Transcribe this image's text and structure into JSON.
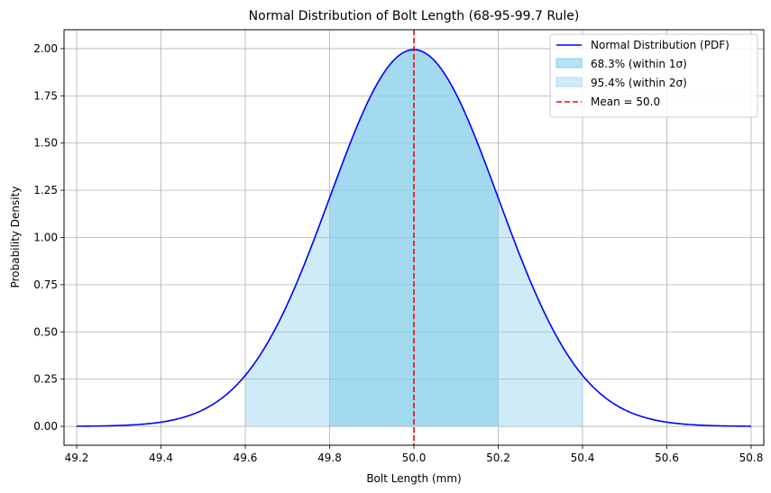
{
  "chart_data": {
    "type": "line",
    "title": "Normal Distribution of Bolt Length (68-95-99.7 Rule)",
    "xlabel": "Bolt Length (mm)",
    "ylabel": "Probability Density",
    "xlim": [
      49.17,
      50.83
    ],
    "ylim": [
      -0.1,
      2.1
    ],
    "x_ticks": [
      "49.2",
      "49.4",
      "49.6",
      "49.8",
      "50.0",
      "50.2",
      "50.4",
      "50.6",
      "50.8"
    ],
    "y_ticks": [
      "0.00",
      "0.25",
      "0.50",
      "0.75",
      "1.00",
      "1.25",
      "1.50",
      "1.75",
      "2.00"
    ],
    "grid": true,
    "legend_position": "top-right",
    "distribution": {
      "mean": 50.0,
      "std": 0.2,
      "x_range": [
        49.2,
        50.8
      ]
    },
    "series": [
      {
        "name": "Normal Distribution (PDF)",
        "kind": "line",
        "color": "#0000ff"
      },
      {
        "name": "68.3% (within 1σ)",
        "kind": "fill",
        "range": [
          49.8,
          50.2
        ],
        "color": "#87ceeb",
        "alpha": 0.6
      },
      {
        "name": "95.4% (within 2σ)",
        "kind": "fill",
        "range": [
          49.6,
          50.4
        ],
        "color": "#87ceeb",
        "alpha": 0.4
      },
      {
        "name": "Mean = 50.0",
        "kind": "vline",
        "x": 50.0,
        "color": "#ff0000"
      }
    ]
  }
}
